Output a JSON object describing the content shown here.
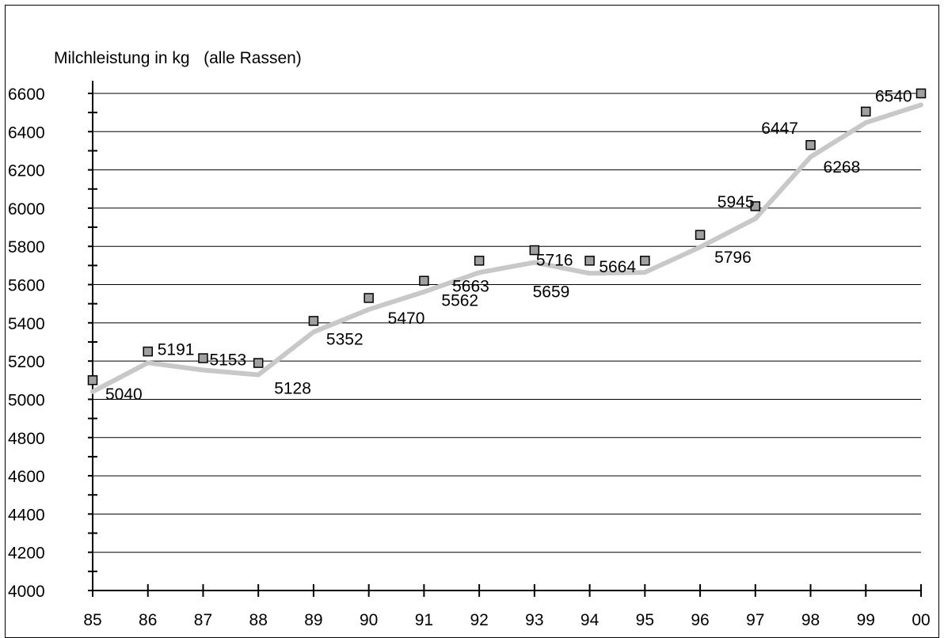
{
  "chart_data": {
    "type": "line",
    "ylabel": "Milchleistung in kg   (alle Rassen)",
    "xlabel": "",
    "categories": [
      "85",
      "86",
      "87",
      "88",
      "89",
      "90",
      "91",
      "92",
      "93",
      "94",
      "95",
      "96",
      "97",
      "98",
      "99",
      "00"
    ],
    "ylim": [
      4000,
      6600
    ],
    "ytick_step": 200,
    "grid": true,
    "series": [
      {
        "kind": "line",
        "values": [
          5040,
          5191,
          5153,
          5128,
          5352,
          5470,
          5562,
          5663,
          5716,
          5659,
          5664,
          5796,
          5945,
          6268,
          6447,
          6540
        ],
        "labels": [
          "5040",
          "5191",
          "5153",
          "5128",
          "5352",
          "5470",
          "5562",
          "5663",
          "5716",
          "5659",
          "5664",
          "5796",
          "5945",
          "6268",
          "6447",
          "6540"
        ],
        "color": "#c8c8c8"
      },
      {
        "kind": "markers",
        "values": [
          5100,
          5250,
          5215,
          5190,
          5410,
          5530,
          5620,
          5725,
          5780,
          5725,
          5725,
          5860,
          6010,
          6330,
          6505,
          6600
        ],
        "color": "#a0a0a0"
      }
    ]
  }
}
